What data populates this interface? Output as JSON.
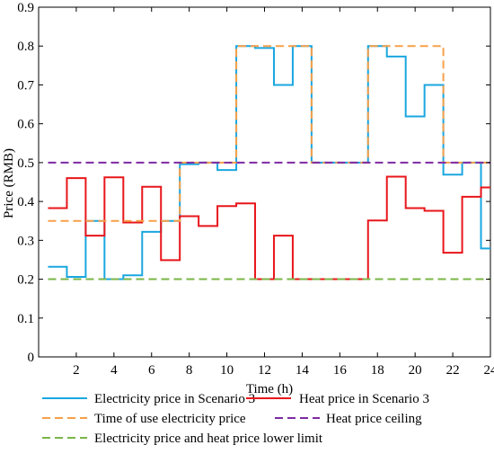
{
  "chart_data": {
    "type": "line",
    "xlabel": "Time (h)",
    "ylabel": "Price (RMB)",
    "xlim": [
      0,
      24
    ],
    "ylim": [
      0,
      0.9
    ],
    "xticks": [
      2,
      4,
      6,
      8,
      10,
      12,
      14,
      16,
      18,
      20,
      22,
      24
    ],
    "yticks": [
      0,
      0.1,
      0.2,
      0.3,
      0.4,
      0.5,
      0.6,
      0.7,
      0.8,
      0.9
    ],
    "xtick_labels": [
      "2",
      "4",
      "6",
      "8",
      "10",
      "12",
      "14",
      "16",
      "18",
      "20",
      "22",
      "24"
    ],
    "ytick_labels": [
      "0",
      "0.1",
      "0.2",
      "0.3",
      "0.4",
      "0.5",
      "0.6",
      "0.7",
      "0.8",
      "0.9"
    ],
    "grid": false,
    "legend_position": "below",
    "series": [
      {
        "name": "Electricity price in Scenario 3",
        "style": "step",
        "color": "#1aa7e0",
        "dash": "solid",
        "start": 0.5,
        "values": [
          0.232,
          0.206,
          0.35,
          0.2,
          0.21,
          0.322,
          0.35,
          0.496,
          0.5,
          0.481,
          0.8,
          0.795,
          0.7,
          0.8,
          0.5,
          0.5,
          0.5,
          0.8,
          0.773,
          0.619,
          0.7,
          0.469,
          0.5,
          0.279
        ]
      },
      {
        "name": "Heat price in Scenario 3",
        "style": "step",
        "color": "#e8161b",
        "dash": "solid",
        "start": 0.5,
        "values": [
          0.383,
          0.46,
          0.312,
          0.462,
          0.346,
          0.438,
          0.249,
          0.362,
          0.337,
          0.388,
          0.395,
          0.2,
          0.312,
          0.2,
          0.2,
          0.2,
          0.2,
          0.351,
          0.464,
          0.383,
          0.376,
          0.268,
          0.412,
          0.436
        ]
      },
      {
        "name": "Time of use electricity price",
        "style": "step",
        "color": "#f7a049",
        "dash": "dashed",
        "start": 0.5,
        "values": [
          0.35,
          0.35,
          0.35,
          0.35,
          0.35,
          0.35,
          0.35,
          0.5,
          0.5,
          0.5,
          0.8,
          0.8,
          0.8,
          0.8,
          0.5,
          0.5,
          0.5,
          0.8,
          0.8,
          0.8,
          0.8,
          0.5,
          0.5,
          0.5
        ]
      },
      {
        "name": "Heat price ceiling",
        "style": "constant",
        "color": "#7d2aa3",
        "dash": "dashed",
        "x": [
          0.5,
          24
        ],
        "values": [
          0.5,
          0.5
        ]
      },
      {
        "name": "Electricity price and heat price lower limit",
        "style": "constant",
        "color": "#7ab648",
        "dash": "dashed",
        "x": [
          0.5,
          24
        ],
        "values": [
          0.2,
          0.2
        ]
      }
    ],
    "legend": [
      {
        "label": "Electricity price in Scenario 3",
        "color": "#1aa7e0",
        "dash": "solid"
      },
      {
        "label": "Heat price in Scenario 3",
        "color": "#e8161b",
        "dash": "solid"
      },
      {
        "label": "Time of use electricity price",
        "color": "#f7a049",
        "dash": "dashed"
      },
      {
        "label": "Heat price ceiling",
        "color": "#7d2aa3",
        "dash": "dashed"
      },
      {
        "label": "Electricity price and heat price lower limit",
        "color": "#7ab648",
        "dash": "dashed"
      }
    ]
  }
}
